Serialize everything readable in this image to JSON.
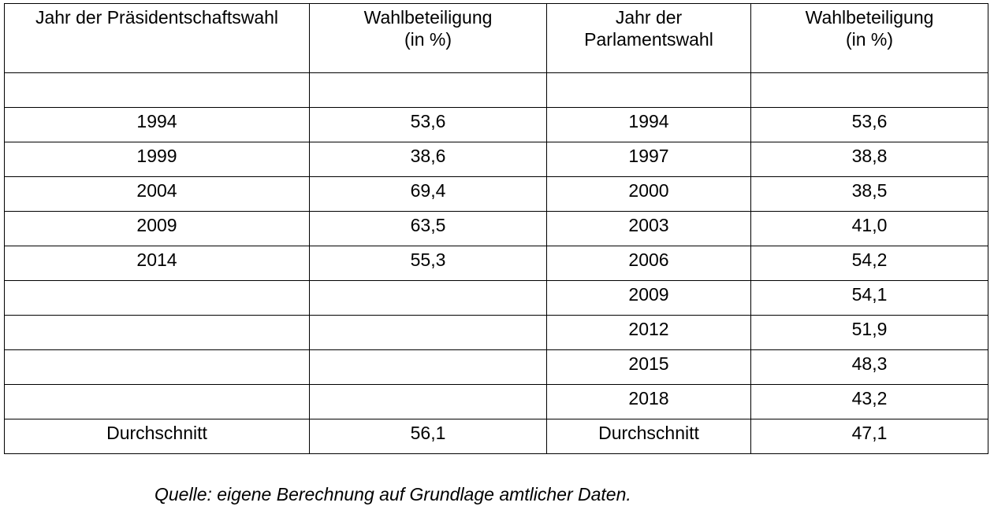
{
  "table": {
    "headers": [
      "Jahr der Präsidentschaftswahl",
      "Wahlbeteiligung\n(in %)",
      "Jahr der\nParlamentswahl",
      "Wahlbeteiligung\n(in %)"
    ],
    "rows": [
      [
        "",
        "",
        "",
        ""
      ],
      [
        "1994",
        "53,6",
        "1994",
        "53,6"
      ],
      [
        "1999",
        "38,6",
        "1997",
        "38,8"
      ],
      [
        "2004",
        "69,4",
        "2000",
        "38,5"
      ],
      [
        "2009",
        "63,5",
        "2003",
        "41,0"
      ],
      [
        "2014",
        "55,3",
        "2006",
        "54,2"
      ],
      [
        "",
        "",
        "2009",
        "54,1"
      ],
      [
        "",
        "",
        "2012",
        "51,9"
      ],
      [
        "",
        "",
        "2015",
        "48,3"
      ],
      [
        "",
        "",
        "2018",
        "43,2"
      ],
      [
        "Durchschnitt",
        "56,1",
        "Durchschnitt",
        "47,1"
      ]
    ]
  },
  "source_note": "Quelle: eigene Berechnung auf Grundlage amtlicher Daten."
}
